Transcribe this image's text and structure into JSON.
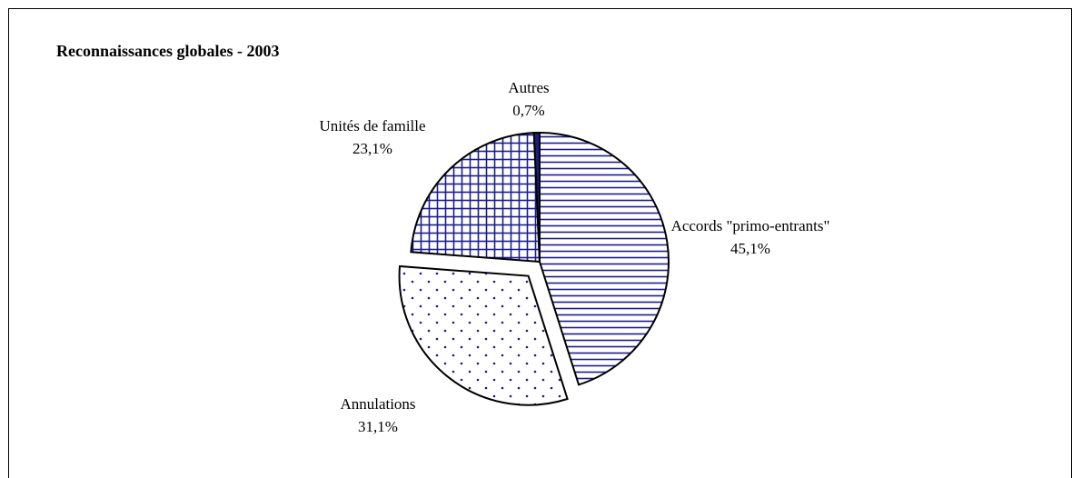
{
  "chart_data": {
    "type": "pie",
    "title": "Reconnaissances globales - 2003",
    "categories": [
      "Accords \"primo-entrants\"",
      "Annulations",
      "Unités de famille",
      "Autres"
    ],
    "values": [
      45.1,
      31.1,
      23.1,
      0.7
    ],
    "value_labels": [
      "45,1%",
      "31,1%",
      "23,1%",
      "0,7%"
    ],
    "color": "#1c1c8a",
    "patterns": [
      "horizontal-lines",
      "dots",
      "grid",
      "solid"
    ],
    "exploded": [
      false,
      true,
      false,
      false
    ]
  }
}
